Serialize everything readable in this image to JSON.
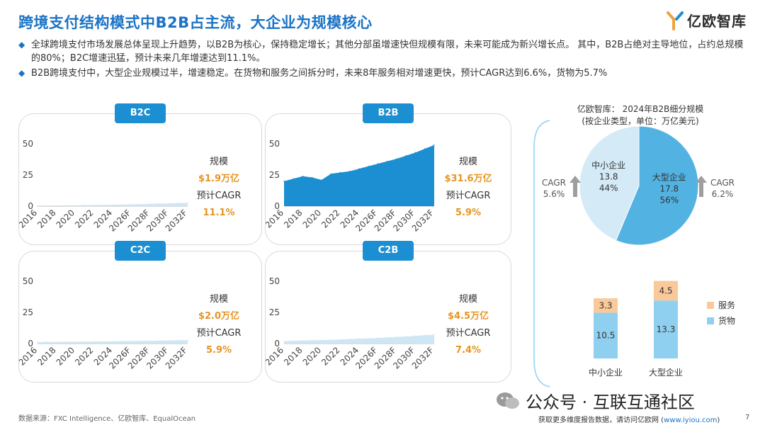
{
  "title": "跨境支付结构模式中B2B占主流，大企业为规模核心",
  "logo_text": "亿欧智库",
  "bullets": [
    "全球跨境支付市场发展总体呈现上升趋势，以B2B为核心，保持稳定增长；其他分部虽增速快但规模有限，未来可能成为新兴增长点。 其中，B2B占绝对主导地位，占约总规模的80%；B2C增速迅猛，预计未来几年增速达到11.1%。",
    "B2B跨境支付中，大型企业规模过半，增速稳定。在货物和服务之间拆分时，未来8年服务相对增速更快，预计CAGR达到6.6%，货物为5.7%"
  ],
  "scale_label": "规模",
  "cagr_label": "预计CAGR",
  "chart_data": [
    {
      "type": "area",
      "name": "B2C",
      "x": [
        "2016",
        "2017",
        "2018",
        "2019",
        "2020",
        "2021",
        "2022",
        "2023",
        "2024",
        "2025",
        "2026F",
        "2027F",
        "2028F",
        "2029F",
        "2030F",
        "2031F",
        "2032F"
      ],
      "x_tick_labels": [
        "2016",
        "2018",
        "2020",
        "2022",
        "2024",
        "2026F",
        "2028F",
        "2030F",
        "2032F"
      ],
      "values": [
        0.5,
        0.55,
        0.6,
        0.65,
        0.7,
        0.8,
        0.9,
        1.0,
        1.1,
        1.25,
        1.4,
        1.6,
        1.8,
        2.0,
        2.2,
        2.45,
        2.7
      ],
      "yticks": [
        0,
        25,
        50
      ],
      "ylim": [
        0,
        50
      ],
      "color": "#cfe6f5",
      "scale": "$1.9万亿",
      "cagr": "11.1%"
    },
    {
      "type": "area",
      "name": "B2B",
      "x": [
        "2016",
        "2017",
        "2018",
        "2019",
        "2020",
        "2021",
        "2022",
        "2023",
        "2024",
        "2025",
        "2026F",
        "2027F",
        "2028F",
        "2029F",
        "2030F",
        "2031F",
        "2032F"
      ],
      "x_tick_labels": [
        "2016",
        "2018",
        "2020",
        "2022",
        "2024",
        "2026F",
        "2028F",
        "2030F",
        "2032F"
      ],
      "values": [
        20,
        22,
        24,
        23,
        21,
        26,
        27,
        28,
        30,
        32,
        34,
        36,
        38,
        40.5,
        43,
        46,
        49
      ],
      "yticks": [
        0,
        25,
        50
      ],
      "ylim": [
        0,
        50
      ],
      "color": "#1b8fd1",
      "scale": "$31.6万亿",
      "cagr": "5.9%"
    },
    {
      "type": "area",
      "name": "C2C",
      "x": [
        "2016",
        "2017",
        "2018",
        "2019",
        "2020",
        "2021",
        "2022",
        "2023",
        "2024",
        "2025",
        "2026F",
        "2027F",
        "2028F",
        "2029F",
        "2030F",
        "2031F",
        "2032F"
      ],
      "x_tick_labels": [
        "2016",
        "2018",
        "2020",
        "2022",
        "2024",
        "2026F",
        "2028F",
        "2030F",
        "2032F"
      ],
      "values": [
        1.2,
        1.3,
        1.35,
        1.4,
        1.45,
        1.55,
        1.6,
        1.7,
        1.8,
        1.9,
        2.0,
        2.1,
        2.2,
        2.35,
        2.5,
        2.65,
        2.8
      ],
      "yticks": [
        0,
        25,
        50
      ],
      "ylim": [
        0,
        50
      ],
      "color": "#cfe6f5",
      "scale": "$2.0万亿",
      "cagr": "5.9%"
    },
    {
      "type": "area",
      "name": "C2B",
      "x": [
        "2016",
        "2017",
        "2018",
        "2019",
        "2020",
        "2021",
        "2022",
        "2023",
        "2024",
        "2025",
        "2026F",
        "2027F",
        "2028F",
        "2029F",
        "2030F",
        "2031F",
        "2032F"
      ],
      "x_tick_labels": [
        "2016",
        "2018",
        "2020",
        "2022",
        "2024",
        "2026F",
        "2028F",
        "2030F",
        "2032F"
      ],
      "values": [
        2.0,
        2.2,
        2.4,
        2.6,
        2.8,
        3.0,
        3.3,
        3.6,
        3.9,
        4.2,
        4.5,
        4.9,
        5.3,
        5.7,
        6.2,
        6.7,
        7.2
      ],
      "yticks": [
        0,
        25,
        50
      ],
      "ylim": [
        0,
        50
      ],
      "color": "#cfe6f5",
      "scale": "$4.5万亿",
      "cagr": "7.4%"
    },
    {
      "type": "pie",
      "title": "亿欧智库： 2024年B2B细分规模",
      "subtitle": "(按企业类型，单位：万亿美元)",
      "slices": [
        {
          "name": "中小企业",
          "value": 13.8,
          "percent": "44%",
          "color": "#d4ebf7",
          "cagr": "5.6%"
        },
        {
          "name": "大型企业",
          "value": 17.8,
          "percent": "56%",
          "color": "#52b3e3",
          "cagr": "6.2%"
        }
      ],
      "cagr_label": "CAGR"
    },
    {
      "type": "bar",
      "stacked": true,
      "categories": [
        "中小企业",
        "大型企业"
      ],
      "series": [
        {
          "name": "货物",
          "values": [
            10.5,
            13.3
          ],
          "color": "#8fd0f0"
        },
        {
          "name": "服务",
          "values": [
            3.3,
            4.5
          ],
          "color": "#f9c99a"
        }
      ],
      "legend": [
        "服务",
        "货物"
      ]
    }
  ],
  "footer": {
    "source": "数据来源：FXC Intelligence、亿欧智库、EqualOcean",
    "more_text": "获取更多维度报告数据，请访问亿欧网 (",
    "url": "www.iyiou.com",
    "more_end": ")",
    "page": "7",
    "wechat": "公众号 · 互联互通社区"
  }
}
